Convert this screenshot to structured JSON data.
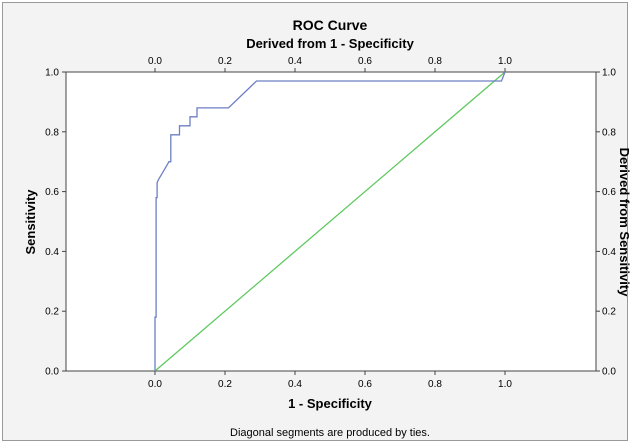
{
  "chart_data": {
    "type": "line",
    "title": "ROC Curve",
    "subtitle": "Derived from 1 - Specificity",
    "xlabel": "1 - Specificity",
    "ylabel": "Sensitivity",
    "y2label": "Derived from Sensitivity",
    "footnote": "Diagonal segments are produced by ties.",
    "xlim": [
      0,
      1
    ],
    "ylim": [
      0,
      1
    ],
    "x_ticks": [
      "0.0",
      "0.2",
      "0.4",
      "0.6",
      "0.8",
      "1.0"
    ],
    "y_ticks": [
      "0.0",
      "0.2",
      "0.4",
      "0.6",
      "0.8",
      "1.0"
    ],
    "grid": false,
    "series": [
      {
        "color": "#6d7fc4",
        "x": [
          0,
          0,
          0.003,
          0.003,
          0.006,
          0.006,
          0.01,
          0.02,
          0.03,
          0.04,
          0.045,
          0.045,
          0.07,
          0.07,
          0.1,
          0.1,
          0.12,
          0.12,
          0.21,
          0.29,
          0.99,
          1.0
        ],
        "y": [
          0,
          0.18,
          0.18,
          0.58,
          0.58,
          0.63,
          0.64,
          0.66,
          0.68,
          0.7,
          0.7,
          0.79,
          0.79,
          0.82,
          0.82,
          0.85,
          0.85,
          0.88,
          0.88,
          0.97,
          0.97,
          1.0
        ]
      },
      {
        "color": "#5ec85e",
        "x": [
          0,
          1
        ],
        "y": [
          0,
          1
        ]
      }
    ]
  }
}
